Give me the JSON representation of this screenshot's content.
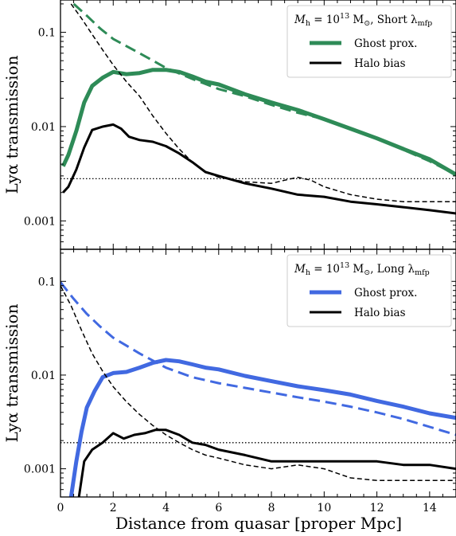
{
  "xlabel": "Distance from quasar [proper Mpc]",
  "chart_data": [
    {
      "type": "line",
      "title": "",
      "xlabel": "",
      "ylabel": "Lyα transmission",
      "yscale": "log",
      "xlim": [
        0,
        15
      ],
      "ylim": [
        0.0005,
        0.22
      ],
      "x_ticks": [
        0,
        2,
        4,
        6,
        8,
        10,
        12,
        14
      ],
      "y_ticks": [
        0.001,
        0.01,
        0.1
      ],
      "y_tick_labels": [
        "0.001",
        "0.01",
        "0.1"
      ],
      "legend": {
        "title_main": "M",
        "title_h": "h",
        "title_mid": " = 10",
        "title_exp": "13",
        "title_unit": " M",
        "title_sun": "⊙",
        "title_rest": ", Short λ",
        "title_sub": "mfp",
        "placement": "top-right"
      },
      "reference_line": 0.0028,
      "series": [
        {
          "name": "Ghost prox.",
          "color": "#2e8b57",
          "style": "solid",
          "width": 5,
          "x": [
            0.1,
            0.3,
            0.6,
            0.9,
            1.2,
            1.6,
            2.0,
            2.5,
            3.0,
            3.5,
            4.0,
            4.5,
            5.0,
            5.5,
            6.0,
            7.0,
            8.0,
            9.0,
            10.0,
            11.0,
            12.0,
            13.0,
            14.0,
            15.0
          ],
          "y": [
            0.0038,
            0.005,
            0.009,
            0.018,
            0.027,
            0.033,
            0.038,
            0.036,
            0.037,
            0.04,
            0.04,
            0.038,
            0.034,
            0.03,
            0.028,
            0.022,
            0.018,
            0.015,
            0.012,
            0.0095,
            0.0075,
            0.0058,
            0.0045,
            0.0031
          ]
        },
        {
          "name": "",
          "color": "#2e8b57",
          "style": "dashed",
          "width": 3,
          "x": [
            0.5,
            1.0,
            1.5,
            2.0,
            3.0,
            4.0,
            5.0,
            6.0,
            7.0,
            8.0,
            9.0,
            10.0,
            11.0,
            12.0,
            13.0,
            14.0,
            15.0
          ],
          "y": [
            0.2,
            0.15,
            0.11,
            0.085,
            0.06,
            0.042,
            0.032,
            0.025,
            0.021,
            0.017,
            0.014,
            0.012,
            0.0095,
            0.0075,
            0.0057,
            0.0043,
            0.0031
          ]
        },
        {
          "name": "Halo bias",
          "color": "#000000",
          "style": "solid",
          "width": 3,
          "x": [
            0.1,
            0.3,
            0.6,
            0.9,
            1.2,
            1.6,
            2.0,
            2.3,
            2.6,
            3.0,
            3.5,
            4.0,
            4.5,
            5.0,
            5.5,
            6.0,
            7.0,
            8.0,
            9.0,
            10.0,
            11.0,
            12.0,
            13.0,
            14.0,
            15.0
          ],
          "y": [
            0.002,
            0.0023,
            0.0035,
            0.006,
            0.0092,
            0.01,
            0.0105,
            0.0095,
            0.0078,
            0.0072,
            0.0069,
            0.0062,
            0.0052,
            0.0042,
            0.0033,
            0.003,
            0.0025,
            0.0022,
            0.0019,
            0.0018,
            0.0016,
            0.0015,
            0.0014,
            0.0013,
            0.0012
          ]
        },
        {
          "name": "",
          "color": "#000000",
          "style": "dashed",
          "width": 1.5,
          "x": [
            0.4,
            0.8,
            1.2,
            1.6,
            2.0,
            2.5,
            3.0,
            3.5,
            4.0,
            4.5,
            5.0,
            5.5,
            6.0,
            7.0,
            8.0,
            8.5,
            9.0,
            9.5,
            10.0,
            11.0,
            12.0,
            13.0,
            14.0,
            15.0
          ],
          "y": [
            0.2,
            0.14,
            0.095,
            0.065,
            0.045,
            0.03,
            0.021,
            0.013,
            0.0085,
            0.0058,
            0.0042,
            0.0033,
            0.0029,
            0.0026,
            0.0025,
            0.0027,
            0.0029,
            0.0027,
            0.0023,
            0.0019,
            0.0017,
            0.0016,
            0.0016,
            0.0016
          ]
        }
      ]
    },
    {
      "type": "line",
      "title": "",
      "xlabel": "Distance from quasar [proper Mpc]",
      "ylabel": "Lyα transmission",
      "yscale": "log",
      "xlim": [
        0,
        15
      ],
      "ylim": [
        0.0005,
        0.22
      ],
      "x_ticks": [
        0,
        2,
        4,
        6,
        8,
        10,
        12,
        14
      ],
      "y_ticks": [
        0.001,
        0.01,
        0.1
      ],
      "y_tick_labels": [
        "0.001",
        "0.01",
        "0.1"
      ],
      "legend": {
        "title_main": "M",
        "title_h": "h",
        "title_mid": " = 10",
        "title_exp": "13",
        "title_unit": " M",
        "title_sun": "⊙",
        "title_rest": ", Long λ",
        "title_sub": "mfp",
        "placement": "top-right"
      },
      "reference_line": 0.0019,
      "series": [
        {
          "name": "Ghost prox.",
          "color": "#4169e1",
          "style": "solid",
          "width": 5,
          "x": [
            0.4,
            0.6,
            0.8,
            1.0,
            1.3,
            1.6,
            2.0,
            2.5,
            3.0,
            3.5,
            4.0,
            4.5,
            5.0,
            5.5,
            6.0,
            7.0,
            8.0,
            9.0,
            10.0,
            11.0,
            12.0,
            13.0,
            14.0,
            15.0
          ],
          "y": [
            0.0005,
            0.0012,
            0.0025,
            0.0045,
            0.0068,
            0.0095,
            0.0105,
            0.0108,
            0.012,
            0.0135,
            0.0145,
            0.014,
            0.013,
            0.012,
            0.0115,
            0.0098,
            0.0086,
            0.0076,
            0.0069,
            0.0062,
            0.0053,
            0.0046,
            0.0039,
            0.0035
          ]
        },
        {
          "name": "",
          "color": "#4169e1",
          "style": "dashed",
          "width": 3,
          "x": [
            0.0,
            0.5,
            1.0,
            1.5,
            2.0,
            3.0,
            4.0,
            5.0,
            6.0,
            7.0,
            8.0,
            9.0,
            10.0,
            11.0,
            12.0,
            13.0,
            14.0,
            15.0
          ],
          "y": [
            0.098,
            0.065,
            0.045,
            0.033,
            0.025,
            0.017,
            0.012,
            0.0095,
            0.0082,
            0.0073,
            0.0065,
            0.0058,
            0.0052,
            0.0046,
            0.004,
            0.0034,
            0.0028,
            0.0023
          ]
        },
        {
          "name": "Halo bias",
          "color": "#000000",
          "style": "solid",
          "width": 3,
          "x": [
            0.7,
            0.9,
            1.2,
            1.6,
            2.0,
            2.4,
            2.8,
            3.2,
            3.6,
            4.0,
            4.5,
            5.0,
            5.5,
            6.0,
            7.0,
            8.0,
            9.0,
            10.0,
            11.0,
            12.0,
            13.0,
            14.0,
            15.0
          ],
          "y": [
            0.0005,
            0.0012,
            0.0016,
            0.0019,
            0.0024,
            0.0021,
            0.0023,
            0.0024,
            0.0026,
            0.0026,
            0.0023,
            0.0019,
            0.0018,
            0.0016,
            0.0014,
            0.0012,
            0.0012,
            0.0012,
            0.0012,
            0.0012,
            0.0011,
            0.0011,
            0.001
          ]
        },
        {
          "name": "",
          "color": "#000000",
          "style": "dashed",
          "width": 1.5,
          "x": [
            0.0,
            0.4,
            0.8,
            1.2,
            1.6,
            2.0,
            2.5,
            3.0,
            3.5,
            4.0,
            4.5,
            5.0,
            5.5,
            6.0,
            7.0,
            8.0,
            9.0,
            10.0,
            11.0,
            12.0,
            13.0,
            14.0,
            15.0
          ],
          "y": [
            0.09,
            0.055,
            0.03,
            0.017,
            0.011,
            0.0075,
            0.0052,
            0.0038,
            0.0029,
            0.0023,
            0.0019,
            0.0016,
            0.0014,
            0.0013,
            0.0011,
            0.001,
            0.0011,
            0.001,
            0.0008,
            0.00075,
            0.00075,
            0.00075,
            0.00075
          ]
        }
      ]
    }
  ]
}
